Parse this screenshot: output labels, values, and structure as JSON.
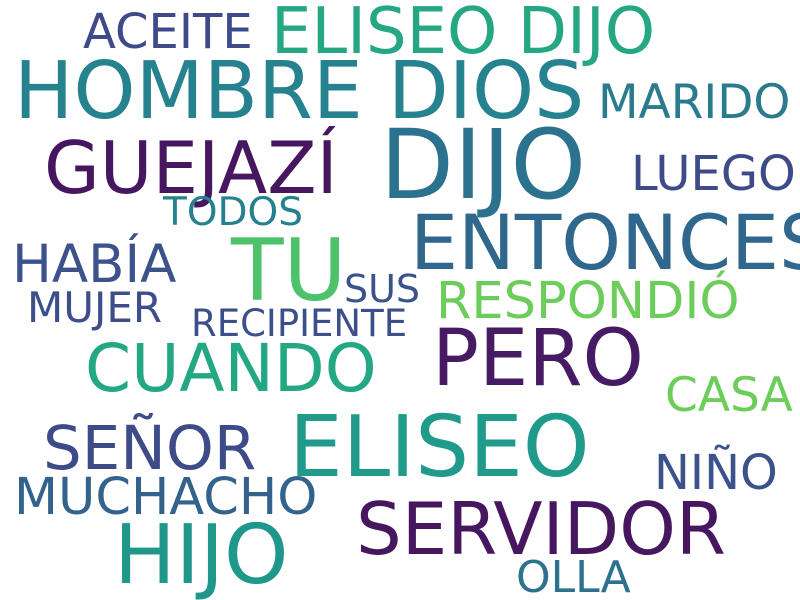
{
  "words": [
    {
      "text": "ACEITE",
      "color": "#3e4a89"
    },
    {
      "text": "ELISEO DIJO",
      "color": "#26a783"
    },
    {
      "text": "HOMBRE DIOS",
      "color": "#26828e"
    },
    {
      "text": "MARIDO",
      "color": "#2a7b8e"
    },
    {
      "text": "GUEJAZÍ",
      "color": "#46165f"
    },
    {
      "text": "DIJO",
      "color": "#2b728e"
    },
    {
      "text": "LUEGO",
      "color": "#3e4b89"
    },
    {
      "text": "TODOS",
      "color": "#26818e"
    },
    {
      "text": "ENTONCES",
      "color": "#30678d"
    },
    {
      "text": "TU",
      "color": "#4cc26b"
    },
    {
      "text": "HABÍA",
      "color": "#3b528b"
    },
    {
      "text": "SUS",
      "color": "#3a538b"
    },
    {
      "text": "RESPONDIÓ",
      "color": "#6ccd5a"
    },
    {
      "text": "MUJER",
      "color": "#3d4e8a"
    },
    {
      "text": "RECIPIENTE",
      "color": "#3c4f8a"
    },
    {
      "text": "PERO",
      "color": "#471a64"
    },
    {
      "text": "CUANDO",
      "color": "#24a884"
    },
    {
      "text": "CASA",
      "color": "#6ccd5a"
    },
    {
      "text": "ELISEO",
      "color": "#209a8b"
    },
    {
      "text": "SEÑOR",
      "color": "#3e4b89"
    },
    {
      "text": "NIÑO",
      "color": "#3b528b"
    },
    {
      "text": "MUCHACHO",
      "color": "#33638d"
    },
    {
      "text": "SERVIDOR",
      "color": "#46165f"
    },
    {
      "text": "HIJO",
      "color": "#1f978b"
    },
    {
      "text": "OLLA",
      "color": "#2c718e"
    }
  ]
}
